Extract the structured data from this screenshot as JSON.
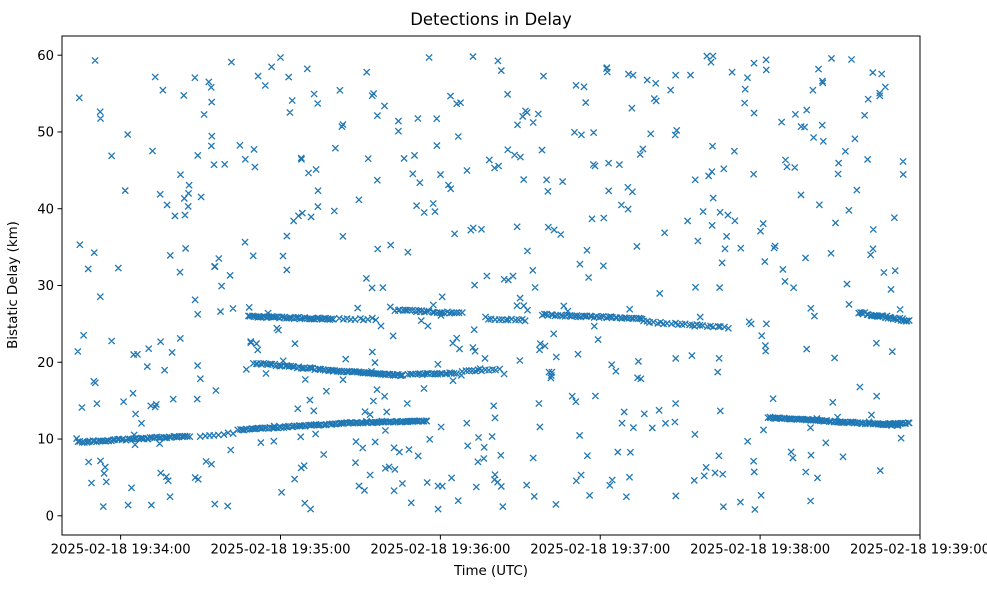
{
  "figure": {
    "title": "Detections in Delay",
    "xlabel": "Time (UTC)",
    "ylabel": "Bistatic Delay (km)"
  },
  "chart_data": {
    "type": "scatter",
    "title": "Detections in Delay",
    "xlabel": "Time (UTC)",
    "ylabel": "Bistatic Delay (km)",
    "marker": "x",
    "marker_color": "#1f77b4",
    "grid": false,
    "legend": null,
    "x_axis": {
      "tick_labels": [
        "2025-02-18 19:34:00",
        "2025-02-18 19:35:00",
        "2025-02-18 19:36:00",
        "2025-02-18 19:37:00",
        "2025-02-18 19:38:00",
        "2025-02-18 19:39:00"
      ],
      "tick_seconds": [
        0,
        60,
        120,
        180,
        240,
        300
      ],
      "range_seconds": [
        -22,
        300
      ]
    },
    "y_axis": {
      "ticks": [
        0,
        10,
        20,
        30,
        40,
        50,
        60
      ],
      "range": [
        -2.5,
        62.5
      ]
    },
    "tracks": [
      {
        "t": [
          48,
          80
        ],
        "y": [
          26.0,
          25.6
        ],
        "n": 50,
        "jy": 0.12
      },
      {
        "t": [
          82,
          96
        ],
        "y": [
          25.7,
          25.6
        ],
        "n": 10,
        "jy": 0.15
      },
      {
        "t": [
          103,
          128
        ],
        "y": [
          26.8,
          26.4
        ],
        "n": 28,
        "jy": 0.1
      },
      {
        "t": [
          138,
          152
        ],
        "y": [
          25.6,
          25.5
        ],
        "n": 12,
        "jy": 0.1
      },
      {
        "t": [
          158,
          196
        ],
        "y": [
          26.2,
          25.7
        ],
        "n": 45,
        "jy": 0.1
      },
      {
        "t": [
          196,
          228
        ],
        "y": [
          25.3,
          24.5
        ],
        "n": 25,
        "jy": 0.12
      },
      {
        "t": [
          277,
          296
        ],
        "y": [
          26.5,
          25.4
        ],
        "n": 32,
        "jy": 0.14
      },
      {
        "t": [
          50,
          80
        ],
        "y": [
          19.9,
          18.9
        ],
        "n": 40,
        "jy": 0.1
      },
      {
        "t": [
          80,
          106
        ],
        "y": [
          18.9,
          18.3
        ],
        "n": 45,
        "jy": 0.08
      },
      {
        "t": [
          108,
          126
        ],
        "y": [
          18.4,
          18.6
        ],
        "n": 22,
        "jy": 0.08
      },
      {
        "t": [
          128,
          142
        ],
        "y": [
          18.8,
          19.1
        ],
        "n": 12,
        "jy": 0.1
      },
      {
        "t": [
          -16,
          26
        ],
        "y": [
          9.6,
          10.4
        ],
        "n": 55,
        "jy": 0.1
      },
      {
        "t": [
          30,
          42
        ],
        "y": [
          10.4,
          10.8
        ],
        "n": 8,
        "jy": 0.12
      },
      {
        "t": [
          44,
          86
        ],
        "y": [
          11.2,
          12.1
        ],
        "n": 60,
        "jy": 0.08
      },
      {
        "t": [
          86,
          108
        ],
        "y": [
          12.1,
          12.3
        ],
        "n": 35,
        "jy": 0.06
      },
      {
        "t": [
          108,
          115
        ],
        "y": [
          12.3,
          12.35
        ],
        "n": 14,
        "jy": 0.05
      },
      {
        "t": [
          243,
          292
        ],
        "y": [
          12.8,
          11.8
        ],
        "n": 85,
        "jy": 0.07
      },
      {
        "t": [
          288,
          296
        ],
        "y": [
          12.0,
          12.1
        ],
        "n": 14,
        "jy": 0.06
      }
    ],
    "background": {
      "count": 560,
      "seed": 13,
      "t_range": [
        -18,
        295
      ],
      "y_range": [
        0.8,
        60.0
      ]
    }
  }
}
